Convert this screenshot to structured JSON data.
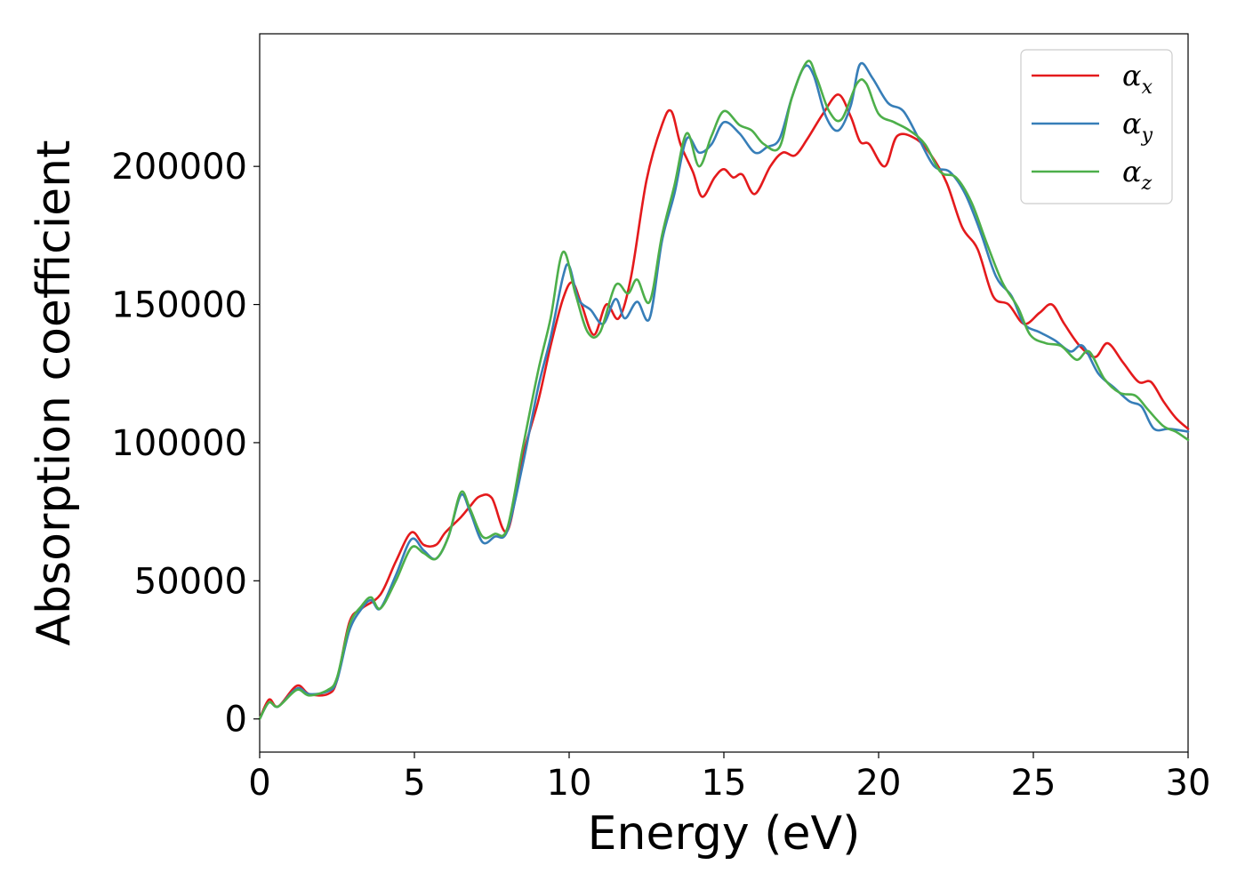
{
  "chart_data": {
    "type": "line",
    "title": "",
    "xlabel": "Energy (eV)",
    "ylabel": "Absorption coefficient",
    "xlim": [
      0,
      30
    ],
    "ylim": [
      -12000,
      248000
    ],
    "xticks": [
      0,
      5,
      10,
      15,
      20,
      25,
      30
    ],
    "yticks": [
      0,
      50000,
      100000,
      150000,
      200000
    ],
    "xtick_labels": [
      "0",
      "5",
      "10",
      "15",
      "20",
      "25",
      "30"
    ],
    "ytick_labels": [
      "0",
      "50000",
      "100000",
      "150000",
      "200000"
    ],
    "grid": false,
    "legend_position": "top-right",
    "series": [
      {
        "name": "α",
        "subscript": "x",
        "color": "#e41a1c",
        "points": [
          [
            0,
            0
          ],
          [
            0.3,
            7000
          ],
          [
            0.6,
            4500
          ],
          [
            1.2,
            12000
          ],
          [
            1.6,
            9000
          ],
          [
            2.2,
            9000
          ],
          [
            2.5,
            14000
          ],
          [
            2.9,
            35000
          ],
          [
            3.3,
            40000
          ],
          [
            3.9,
            45000
          ],
          [
            4.4,
            57000
          ],
          [
            4.9,
            67500
          ],
          [
            5.3,
            63000
          ],
          [
            5.7,
            63000
          ],
          [
            6.0,
            67500
          ],
          [
            6.5,
            73000
          ],
          [
            6.8,
            77000
          ],
          [
            7.1,
            80500
          ],
          [
            7.5,
            80000
          ],
          [
            8.0,
            68000
          ],
          [
            8.5,
            95000
          ],
          [
            9.0,
            115000
          ],
          [
            9.4,
            135000
          ],
          [
            9.8,
            152000
          ],
          [
            10.1,
            158000
          ],
          [
            10.4,
            150000
          ],
          [
            10.8,
            139000
          ],
          [
            11.2,
            150000
          ],
          [
            11.6,
            145000
          ],
          [
            12.0,
            160000
          ],
          [
            12.5,
            195000
          ],
          [
            13.0,
            215000
          ],
          [
            13.3,
            220000
          ],
          [
            13.6,
            208000
          ],
          [
            14.0,
            198000
          ],
          [
            14.3,
            189000
          ],
          [
            14.7,
            196000
          ],
          [
            15.0,
            199000
          ],
          [
            15.3,
            196000
          ],
          [
            15.6,
            197000
          ],
          [
            16.0,
            190000
          ],
          [
            16.5,
            200000
          ],
          [
            16.9,
            205000
          ],
          [
            17.3,
            204000
          ],
          [
            17.7,
            210000
          ],
          [
            18.2,
            219000
          ],
          [
            18.7,
            226000
          ],
          [
            19.1,
            218000
          ],
          [
            19.4,
            209000
          ],
          [
            19.7,
            208000
          ],
          [
            20.2,
            200000
          ],
          [
            20.6,
            211000
          ],
          [
            21.2,
            210000
          ],
          [
            21.7,
            204000
          ],
          [
            22.2,
            194000
          ],
          [
            22.7,
            178000
          ],
          [
            23.2,
            170000
          ],
          [
            23.7,
            153000
          ],
          [
            24.2,
            150000
          ],
          [
            24.7,
            143000
          ],
          [
            25.2,
            147000
          ],
          [
            25.6,
            150000
          ],
          [
            26.0,
            143000
          ],
          [
            26.5,
            135000
          ],
          [
            27.0,
            131000
          ],
          [
            27.4,
            136000
          ],
          [
            27.9,
            129000
          ],
          [
            28.4,
            122000
          ],
          [
            28.8,
            122000
          ],
          [
            29.2,
            115000
          ],
          [
            29.6,
            109000
          ],
          [
            30.0,
            105000
          ]
        ]
      },
      {
        "name": "α",
        "subscript": "y",
        "color": "#377eb8",
        "points": [
          [
            0,
            0
          ],
          [
            0.3,
            6000
          ],
          [
            0.6,
            4500
          ],
          [
            1.2,
            11000
          ],
          [
            1.6,
            9000
          ],
          [
            2.2,
            10000
          ],
          [
            2.5,
            14000
          ],
          [
            2.9,
            32000
          ],
          [
            3.3,
            40000
          ],
          [
            3.6,
            43000
          ],
          [
            3.9,
            40000
          ],
          [
            4.4,
            52000
          ],
          [
            4.9,
            65000
          ],
          [
            5.3,
            61000
          ],
          [
            5.7,
            58000
          ],
          [
            6.1,
            66000
          ],
          [
            6.5,
            81000
          ],
          [
            6.8,
            75000
          ],
          [
            7.2,
            64000
          ],
          [
            7.6,
            66000
          ],
          [
            8.0,
            68000
          ],
          [
            8.5,
            92000
          ],
          [
            9.0,
            120000
          ],
          [
            9.4,
            138000
          ],
          [
            9.8,
            160000
          ],
          [
            10.0,
            164000
          ],
          [
            10.3,
            152000
          ],
          [
            10.7,
            148000
          ],
          [
            11.1,
            143000
          ],
          [
            11.5,
            152000
          ],
          [
            11.8,
            145000
          ],
          [
            12.2,
            151000
          ],
          [
            12.6,
            145000
          ],
          [
            13.0,
            173000
          ],
          [
            13.4,
            190000
          ],
          [
            13.8,
            210000
          ],
          [
            14.2,
            205000
          ],
          [
            14.6,
            208000
          ],
          [
            15.0,
            216000
          ],
          [
            15.5,
            212000
          ],
          [
            16.0,
            205000
          ],
          [
            16.4,
            207000
          ],
          [
            16.8,
            210000
          ],
          [
            17.2,
            225000
          ],
          [
            17.6,
            236000
          ],
          [
            17.9,
            233000
          ],
          [
            18.3,
            218000
          ],
          [
            18.7,
            213000
          ],
          [
            19.1,
            222000
          ],
          [
            19.4,
            237000
          ],
          [
            19.8,
            232000
          ],
          [
            20.3,
            223000
          ],
          [
            20.8,
            220000
          ],
          [
            21.3,
            210000
          ],
          [
            21.8,
            200000
          ],
          [
            22.3,
            198000
          ],
          [
            22.8,
            190000
          ],
          [
            23.3,
            176000
          ],
          [
            23.8,
            160000
          ],
          [
            24.3,
            153000
          ],
          [
            24.7,
            143000
          ],
          [
            25.2,
            140000
          ],
          [
            25.7,
            137000
          ],
          [
            26.2,
            133000
          ],
          [
            26.6,
            135000
          ],
          [
            27.1,
            125000
          ],
          [
            27.6,
            120000
          ],
          [
            28.1,
            115000
          ],
          [
            28.5,
            113000
          ],
          [
            28.9,
            105000
          ],
          [
            29.4,
            105000
          ],
          [
            30.0,
            104000
          ]
        ]
      },
      {
        "name": "α",
        "subscript": "z",
        "color": "#4daf4a",
        "points": [
          [
            0,
            0
          ],
          [
            0.3,
            6000
          ],
          [
            0.6,
            4500
          ],
          [
            1.2,
            10500
          ],
          [
            1.6,
            8500
          ],
          [
            2.2,
            10500
          ],
          [
            2.5,
            15000
          ],
          [
            2.9,
            34000
          ],
          [
            3.3,
            41000
          ],
          [
            3.6,
            44000
          ],
          [
            3.9,
            40000
          ],
          [
            4.4,
            50000
          ],
          [
            4.9,
            62000
          ],
          [
            5.3,
            60000
          ],
          [
            5.7,
            58000
          ],
          [
            6.1,
            66000
          ],
          [
            6.5,
            82000
          ],
          [
            6.8,
            76000
          ],
          [
            7.2,
            66000
          ],
          [
            7.6,
            67000
          ],
          [
            8.0,
            69000
          ],
          [
            8.5,
            98000
          ],
          [
            9.0,
            126000
          ],
          [
            9.4,
            145000
          ],
          [
            9.8,
            169000
          ],
          [
            10.2,
            154000
          ],
          [
            10.6,
            140000
          ],
          [
            11.0,
            140000
          ],
          [
            11.5,
            157000
          ],
          [
            11.9,
            154000
          ],
          [
            12.2,
            159000
          ],
          [
            12.6,
            151000
          ],
          [
            13.0,
            175000
          ],
          [
            13.4,
            193000
          ],
          [
            13.8,
            212000
          ],
          [
            14.2,
            200000
          ],
          [
            14.6,
            211000
          ],
          [
            15.0,
            220000
          ],
          [
            15.5,
            215000
          ],
          [
            15.9,
            213000
          ],
          [
            16.3,
            208000
          ],
          [
            16.8,
            207000
          ],
          [
            17.2,
            225000
          ],
          [
            17.7,
            238000
          ],
          [
            18.0,
            232000
          ],
          [
            18.4,
            220000
          ],
          [
            18.8,
            217000
          ],
          [
            19.3,
            230000
          ],
          [
            19.6,
            230000
          ],
          [
            20.0,
            219000
          ],
          [
            20.5,
            216000
          ],
          [
            21.0,
            213000
          ],
          [
            21.5,
            208000
          ],
          [
            22.0,
            198000
          ],
          [
            22.5,
            196000
          ],
          [
            23.0,
            187000
          ],
          [
            23.5,
            172000
          ],
          [
            24.0,
            158000
          ],
          [
            24.5,
            149000
          ],
          [
            24.9,
            139000
          ],
          [
            25.4,
            136000
          ],
          [
            25.9,
            135000
          ],
          [
            26.4,
            130000
          ],
          [
            26.8,
            133000
          ],
          [
            27.3,
            123000
          ],
          [
            27.8,
            118000
          ],
          [
            28.3,
            117000
          ],
          [
            28.7,
            112000
          ],
          [
            29.2,
            106000
          ],
          [
            29.6,
            104000
          ],
          [
            30.0,
            101000
          ]
        ]
      }
    ]
  }
}
